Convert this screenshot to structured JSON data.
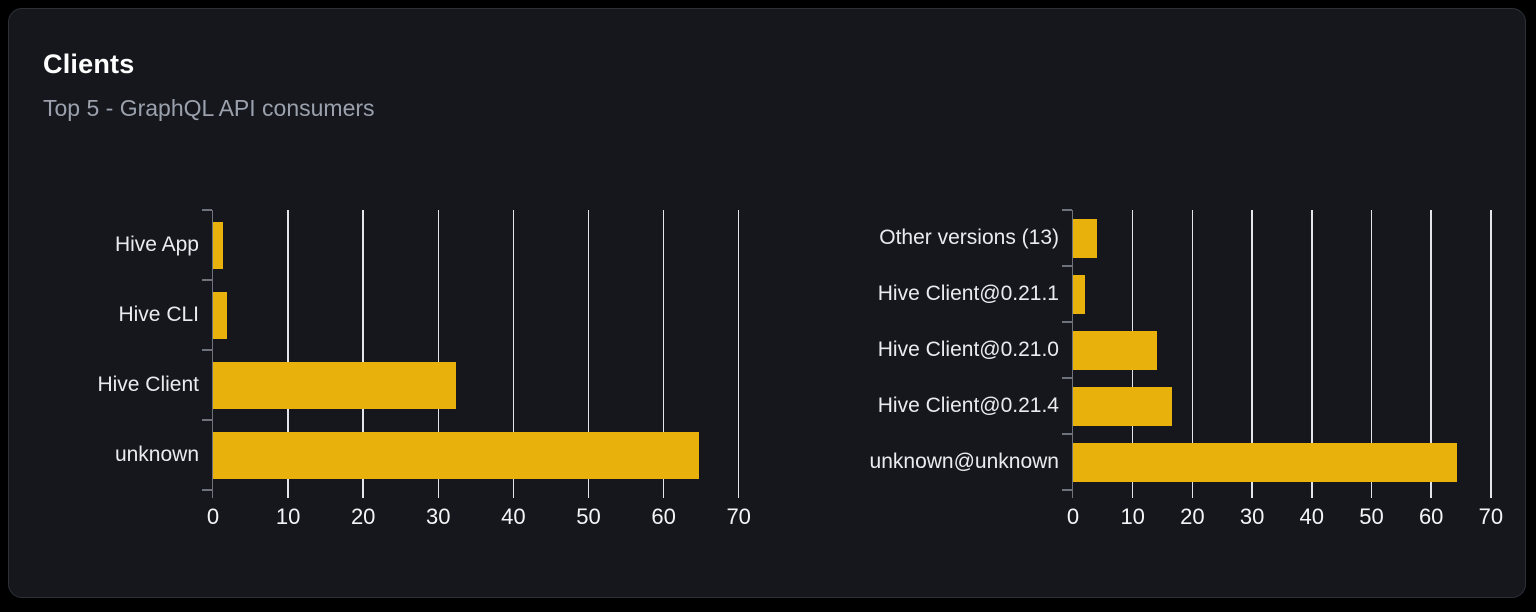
{
  "panel": {
    "title": "Clients",
    "subtitle": "Top 5 - GraphQL API consumers"
  },
  "colors": {
    "page_bg": "#000000",
    "card_bg": "#15171d",
    "card_border": "#2c3037",
    "title": "#ffffff",
    "subtitle": "#9ba1ac",
    "bar": "#e8b10c",
    "grid_line": "#e2e5ec",
    "axis_line": "#6e727b",
    "category_label": "#e9ebee",
    "tick_label": "#f2f4f6"
  },
  "chart_data": [
    {
      "type": "bar",
      "orientation": "horizontal",
      "title": "",
      "categories_top_to_bottom": [
        "Hive App",
        "Hive CLI",
        "Hive Client",
        "unknown"
      ],
      "values": [
        1.3,
        1.9,
        32.3,
        64.7
      ],
      "xlim": [
        0,
        70
      ],
      "xticks": [
        0,
        10,
        20,
        30,
        40,
        50,
        60,
        70
      ],
      "grid": true,
      "legend": "none"
    },
    {
      "type": "bar",
      "orientation": "horizontal",
      "title": "",
      "categories_top_to_bottom": [
        "Other versions (13)",
        "Hive Client@0.21.1",
        "Hive Client@0.21.0",
        "Hive Client@0.21.4",
        "unknown@unknown"
      ],
      "values": [
        4.1,
        2.0,
        14.0,
        16.5,
        64.4
      ],
      "xlim": [
        0,
        70
      ],
      "xticks": [
        0,
        10,
        20,
        30,
        40,
        50,
        60,
        70
      ],
      "grid": true,
      "legend": "none"
    }
  ]
}
